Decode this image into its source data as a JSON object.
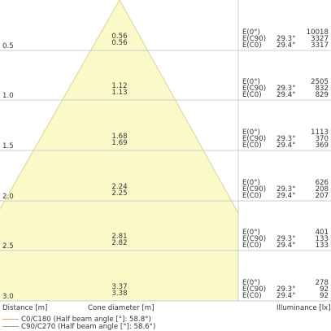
{
  "colors": {
    "cone_fill": "#fafac8",
    "cone_stroke": "#d9d49a",
    "grid": "#cccccc",
    "text": "#333333",
    "c0_line": "#e8a070",
    "c90_line": "#b0a080"
  },
  "rows": [
    {
      "distance": "0.5",
      "cone_c0": "0.56",
      "cone_c90": "0.56",
      "e0": "10018",
      "angle_c90": "29.3°",
      "e_c90": "3327",
      "angle_c0": "29.4°",
      "e_c0": "3317"
    },
    {
      "distance": "1.0",
      "cone_c0": "1.12",
      "cone_c90": "1.13",
      "e0": "2505",
      "angle_c90": "29.3°",
      "e_c90": "832",
      "angle_c0": "29.4°",
      "e_c0": "829"
    },
    {
      "distance": "1.5",
      "cone_c0": "1.68",
      "cone_c90": "1.69",
      "e0": "1113",
      "angle_c90": "29.3°",
      "e_c90": "370",
      "angle_c0": "29.4°",
      "e_c0": "369"
    },
    {
      "distance": "2.0",
      "cone_c0": "2.24",
      "cone_c90": "2.25",
      "e0": "626",
      "angle_c90": "29.3°",
      "e_c90": "208",
      "angle_c0": "29.4°",
      "e_c0": "207"
    },
    {
      "distance": "2.5",
      "cone_c0": "2.81",
      "cone_c90": "2.82",
      "e0": "401",
      "angle_c90": "29.3°",
      "e_c90": "133",
      "angle_c0": "29.4°",
      "e_c0": "133"
    },
    {
      "distance": "3.0",
      "cone_c0": "3.37",
      "cone_c90": "3.38",
      "e0": "278",
      "angle_c90": "29.3°",
      "e_c90": "92",
      "angle_c0": "29.4°",
      "e_c0": "92"
    }
  ],
  "row_labels": {
    "e0": "E(0°)",
    "e_c90": "E(C90)",
    "e_c0": "E(C0)"
  },
  "footer": {
    "distance": "Distance [m]",
    "cone_diameter": "Cone diameter [m]",
    "illuminance": "Illuminance [lx]"
  },
  "legend": {
    "c0": "C0/C180 (Half beam angle [°]: 58.8°)",
    "c90": "C90/C270 (Half beam angle [°]: 58.6°)"
  }
}
